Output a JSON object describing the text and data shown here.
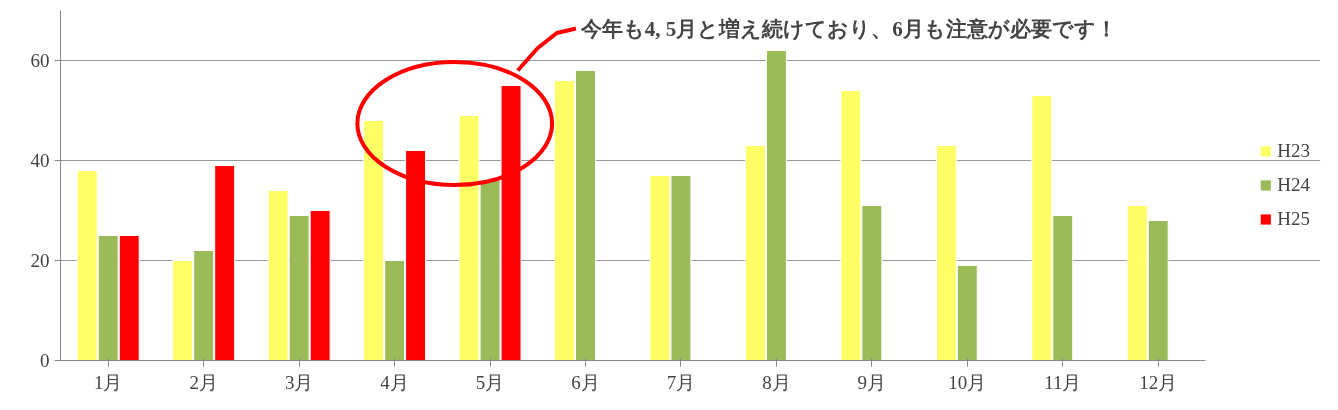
{
  "chart_data": {
    "type": "bar",
    "categories": [
      "1月",
      "2月",
      "3月",
      "4月",
      "5月",
      "6月",
      "7月",
      "8月",
      "9月",
      "10月",
      "11月",
      "12月"
    ],
    "series": [
      {
        "name": "H23",
        "color": "#ffff66",
        "values": [
          38,
          20,
          34,
          48,
          49,
          56,
          37,
          43,
          54,
          43,
          53,
          31
        ]
      },
      {
        "name": "H24",
        "color": "#9bbb59",
        "values": [
          25,
          22,
          29,
          20,
          36,
          58,
          37,
          62,
          31,
          19,
          29,
          28
        ]
      },
      {
        "name": "H25",
        "color": "#ff0000",
        "values": [
          25,
          39,
          30,
          42,
          55,
          null,
          null,
          null,
          null,
          null,
          null,
          null
        ]
      }
    ],
    "ylim": [
      0,
      70
    ],
    "yticks": [
      0,
      20,
      40,
      60
    ],
    "grid": "y",
    "legend": "right",
    "annotations": [
      "今年も4, 5月と増え続けており、6月も注意が必要です！"
    ]
  }
}
